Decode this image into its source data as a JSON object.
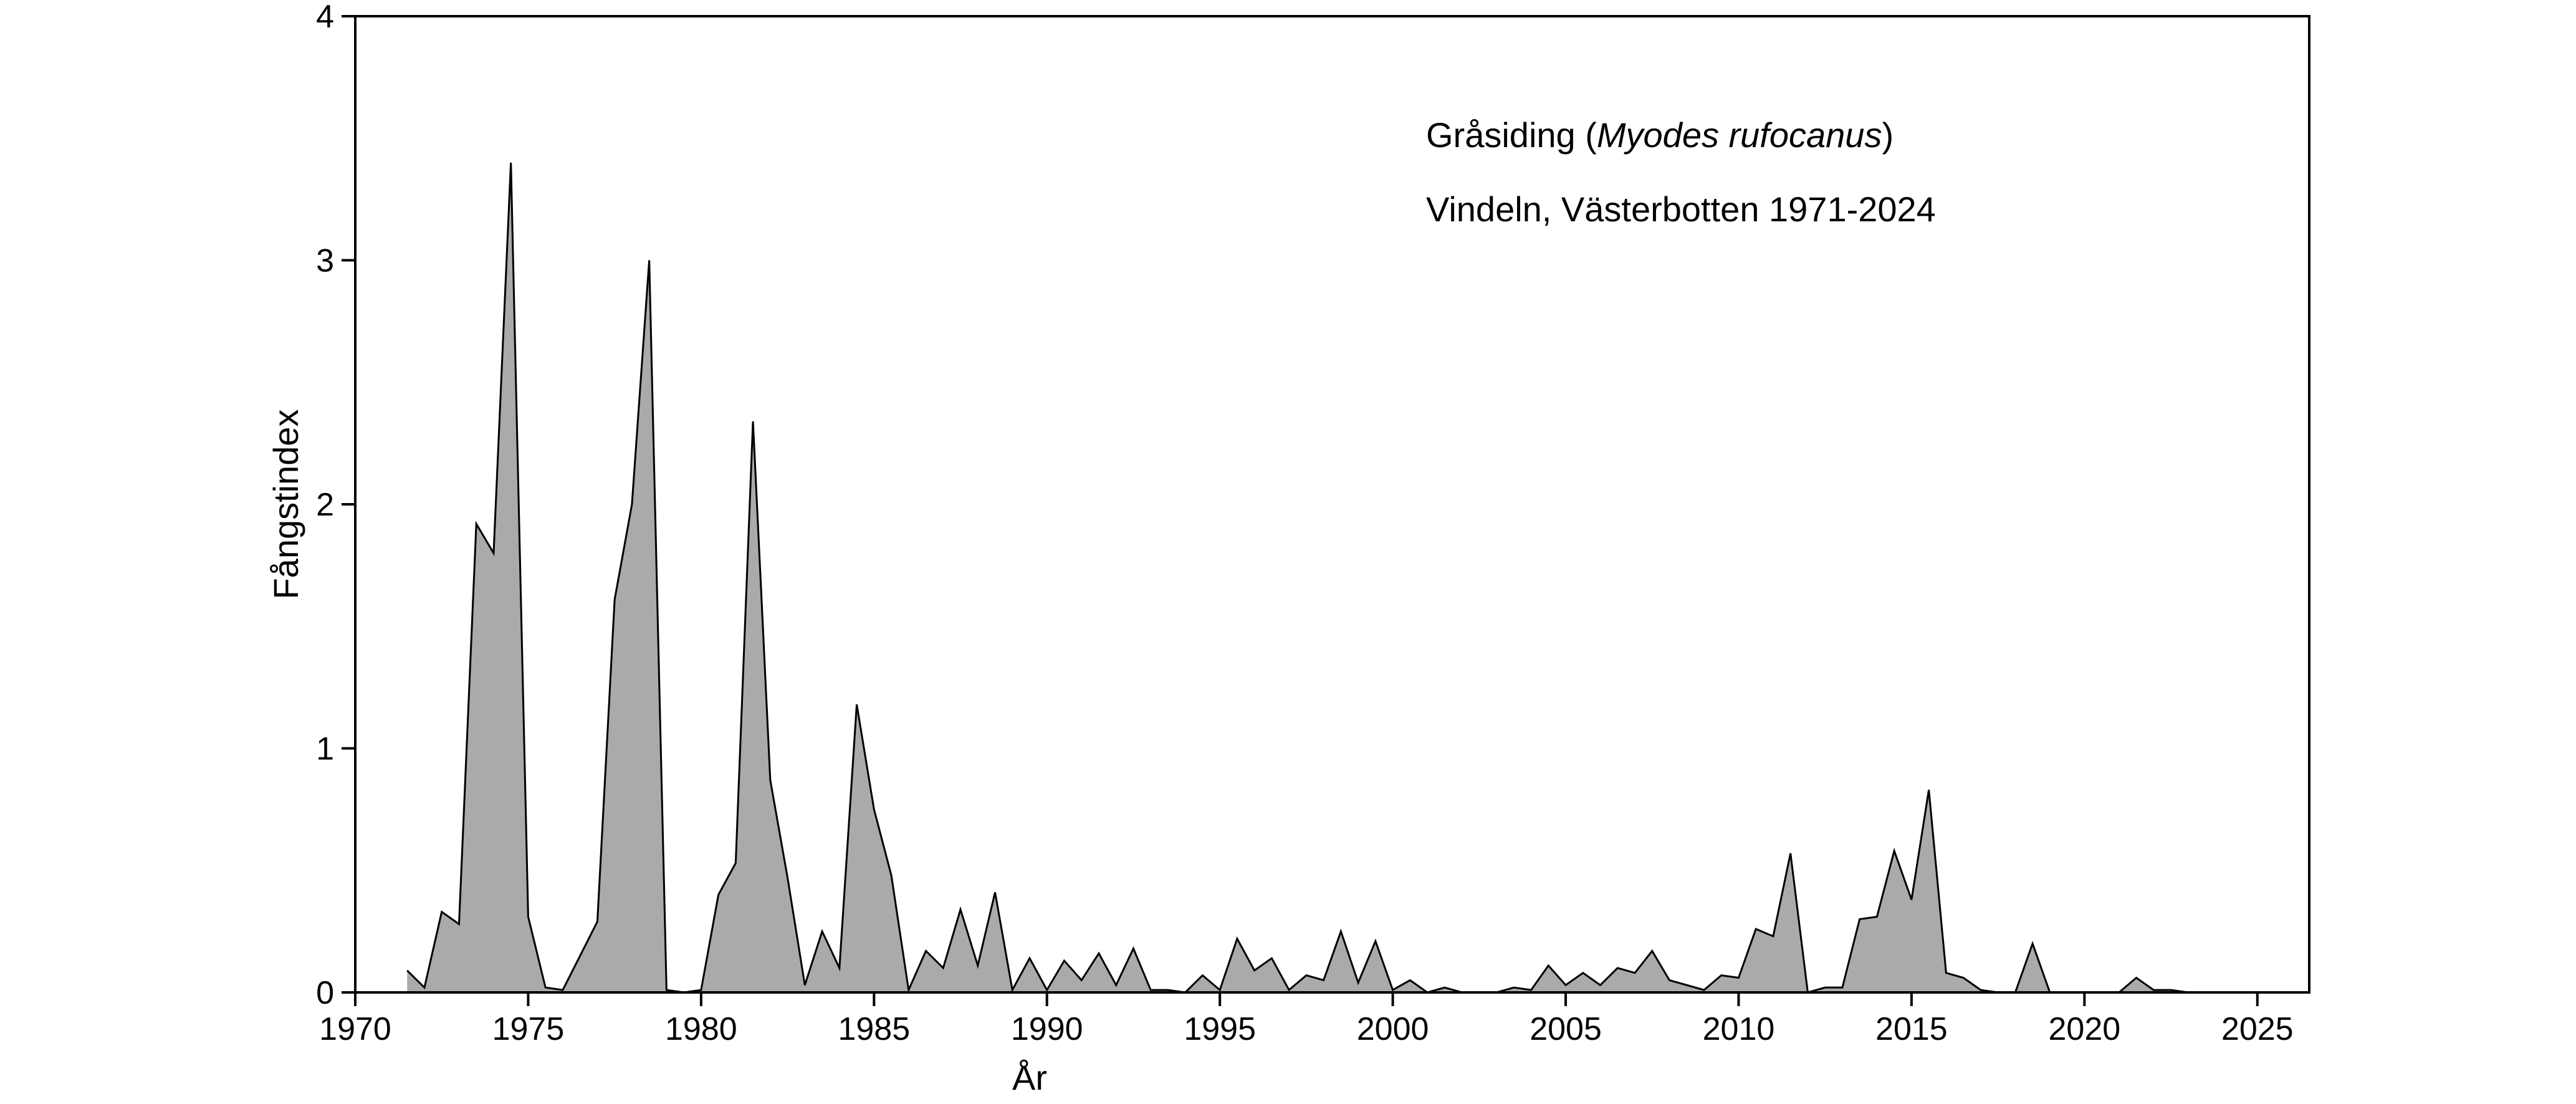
{
  "chart_data": {
    "type": "area",
    "xlabel": "År",
    "ylabel": "Fångstindex",
    "xlim": [
      1970,
      2026.5
    ],
    "ylim": [
      0,
      4
    ],
    "xticks": [
      "1970",
      "1975",
      "1980",
      "1985",
      "1990",
      "1995",
      "2000",
      "2005",
      "2010",
      "2015",
      "2020",
      "2025"
    ],
    "yticks": [
      "0",
      "1",
      "2",
      "3",
      "4"
    ],
    "grid": false,
    "legend": "none",
    "colors": {
      "fill": "#aaaaaa",
      "line": "#000000",
      "axes": "#000000"
    },
    "annotation": {
      "line1_prefix": "Gråsiding (",
      "line1_italic": "Myodes rufocanus",
      "line1_suffix": ")",
      "line2": "Vindeln, Västerbotten 1971-2024"
    },
    "series": [
      {
        "x": [
          1971.5,
          1972,
          1972.5,
          1973,
          1973.5,
          1974,
          1974.5,
          1975,
          1975.5,
          1976,
          1976.5,
          1977,
          1977.5,
          1978,
          1978.5,
          1979,
          1979.5,
          1980,
          1980.5,
          1981,
          1981.5,
          1982,
          1982.5,
          1983,
          1983.5,
          1984,
          1984.5,
          1985,
          1985.5,
          1986,
          1986.5,
          1987,
          1987.5,
          1988,
          1988.5,
          1989,
          1989.5,
          1990,
          1990.5,
          1991,
          1991.5,
          1992,
          1992.5,
          1993,
          1993.5,
          1994,
          1994.5,
          1995,
          1995.5,
          1996,
          1996.5,
          1997,
          1997.5,
          1998,
          1998.5,
          1999,
          1999.5,
          2000,
          2000.5,
          2001,
          2001.5,
          2002,
          2002.5,
          2003,
          2003.5,
          2004,
          2004.5,
          2005,
          2005.5,
          2006,
          2006.5,
          2007,
          2007.5,
          2008,
          2008.5,
          2009,
          2009.5,
          2010,
          2010.5,
          2011,
          2011.5,
          2012,
          2012.5,
          2013,
          2013.5,
          2014,
          2014.5,
          2015,
          2015.5,
          2016,
          2016.5,
          2017,
          2017.5,
          2018,
          2018.5,
          2019,
          2019.5,
          2020,
          2020.5,
          2021,
          2021.5,
          2022,
          2022.5,
          2023,
          2023.5,
          2024
        ],
        "values": [
          0.09,
          0.02,
          0.33,
          0.28,
          1.92,
          1.8,
          3.4,
          0.31,
          0.02,
          0.01,
          0.15,
          0.29,
          1.61,
          2.0,
          3.0,
          0.01,
          0.0,
          0.01,
          0.4,
          0.53,
          2.34,
          0.87,
          0.47,
          0.03,
          0.25,
          0.1,
          1.18,
          0.75,
          0.48,
          0.01,
          0.17,
          0.1,
          0.34,
          0.11,
          0.41,
          0.01,
          0.14,
          0.01,
          0.13,
          0.05,
          0.16,
          0.03,
          0.18,
          0.01,
          0.01,
          0.0,
          0.07,
          0.01,
          0.22,
          0.09,
          0.14,
          0.01,
          0.07,
          0.05,
          0.25,
          0.04,
          0.21,
          0.01,
          0.05,
          0.0,
          0.02,
          0.0,
          0.0,
          0.0,
          0.02,
          0.01,
          0.11,
          0.03,
          0.08,
          0.03,
          0.1,
          0.08,
          0.17,
          0.05,
          0.03,
          0.01,
          0.07,
          0.06,
          0.26,
          0.23,
          0.57,
          0.0,
          0.02,
          0.02,
          0.3,
          0.31,
          0.58,
          0.38,
          0.83,
          0.08,
          0.06,
          0.01,
          0.0,
          0.0,
          0.2,
          0.0,
          0.0,
          0.0,
          0.0,
          0.0,
          0.06,
          0.01,
          0.01,
          0.0,
          0.0,
          0.0
        ]
      }
    ]
  }
}
